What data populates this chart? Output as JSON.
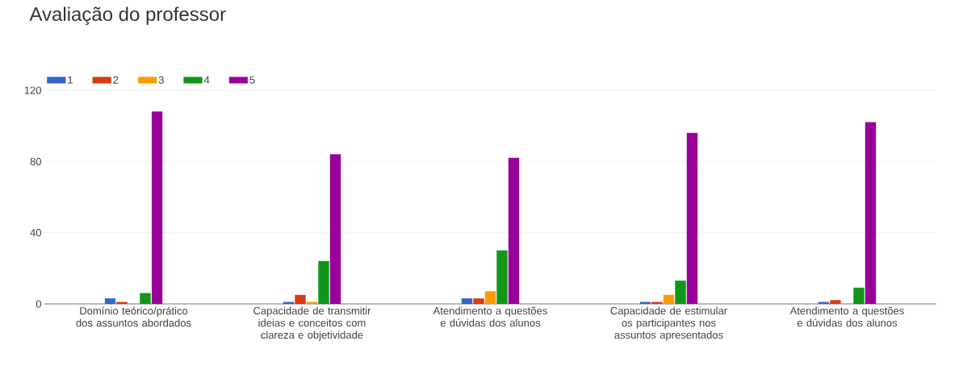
{
  "chart_data": {
    "type": "bar",
    "title": "Avaliação do professor",
    "categories": [
      "Domínio teórico/prático dos assuntos abordados",
      "Capacidade de transmitir ideias e conceitos com clareza e objetividade",
      "Atendimento a questões e dúvidas dos alunos",
      "Capacidade de estimular os participantes nos assuntos apresentados",
      "Atendimento a questões e dúvidas dos alunos"
    ],
    "series": [
      {
        "name": "1",
        "color": "#3366cc",
        "values": [
          3,
          1,
          3,
          1,
          1
        ]
      },
      {
        "name": "2",
        "color": "#dc3912",
        "values": [
          1,
          5,
          3,
          1,
          2
        ]
      },
      {
        "name": "3",
        "color": "#ff9900",
        "values": [
          0,
          1,
          7,
          5,
          0
        ]
      },
      {
        "name": "4",
        "color": "#109618",
        "values": [
          6,
          24,
          30,
          13,
          9
        ]
      },
      {
        "name": "5",
        "color": "#990099",
        "values": [
          108,
          84,
          82,
          96,
          102
        ]
      }
    ],
    "ylim": [
      0,
      120
    ],
    "yticks": [
      0,
      40,
      80,
      120
    ],
    "grid": "y",
    "legend": "top left"
  }
}
